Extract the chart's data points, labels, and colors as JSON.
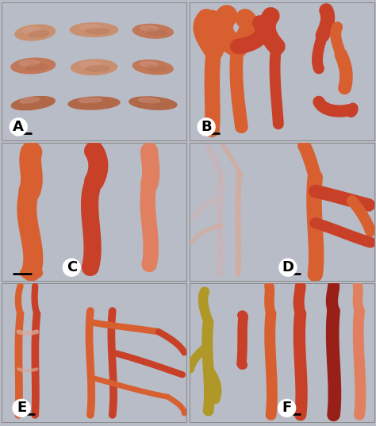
{
  "figsize": [
    4.74,
    5.37
  ],
  "dpi": 100,
  "bg_color": "#b8bcc6",
  "panel_bg": "#b8bcc6",
  "border_color": "#888888",
  "label_fontsize": 13,
  "label_bbox_fc": "white",
  "scale_bar_color": "black",
  "scale_bar_lw": 2.0,
  "panels": [
    "A",
    "B",
    "C",
    "D",
    "E",
    "F"
  ],
  "spore_colors": {
    "light_salmon": "#c89070",
    "salmon": "#c07858",
    "dark_salmon": "#b06848",
    "orange_red": "#d07050",
    "pink_light": "#d8a090"
  },
  "hypha_colors": {
    "orange": "#d86030",
    "red_orange": "#c84028",
    "pale_pink": "#d8a898",
    "pale_lavender": "#c8b4b8",
    "gold": "#b09828",
    "dark_red": "#982018",
    "light_orange": "#e08060"
  }
}
